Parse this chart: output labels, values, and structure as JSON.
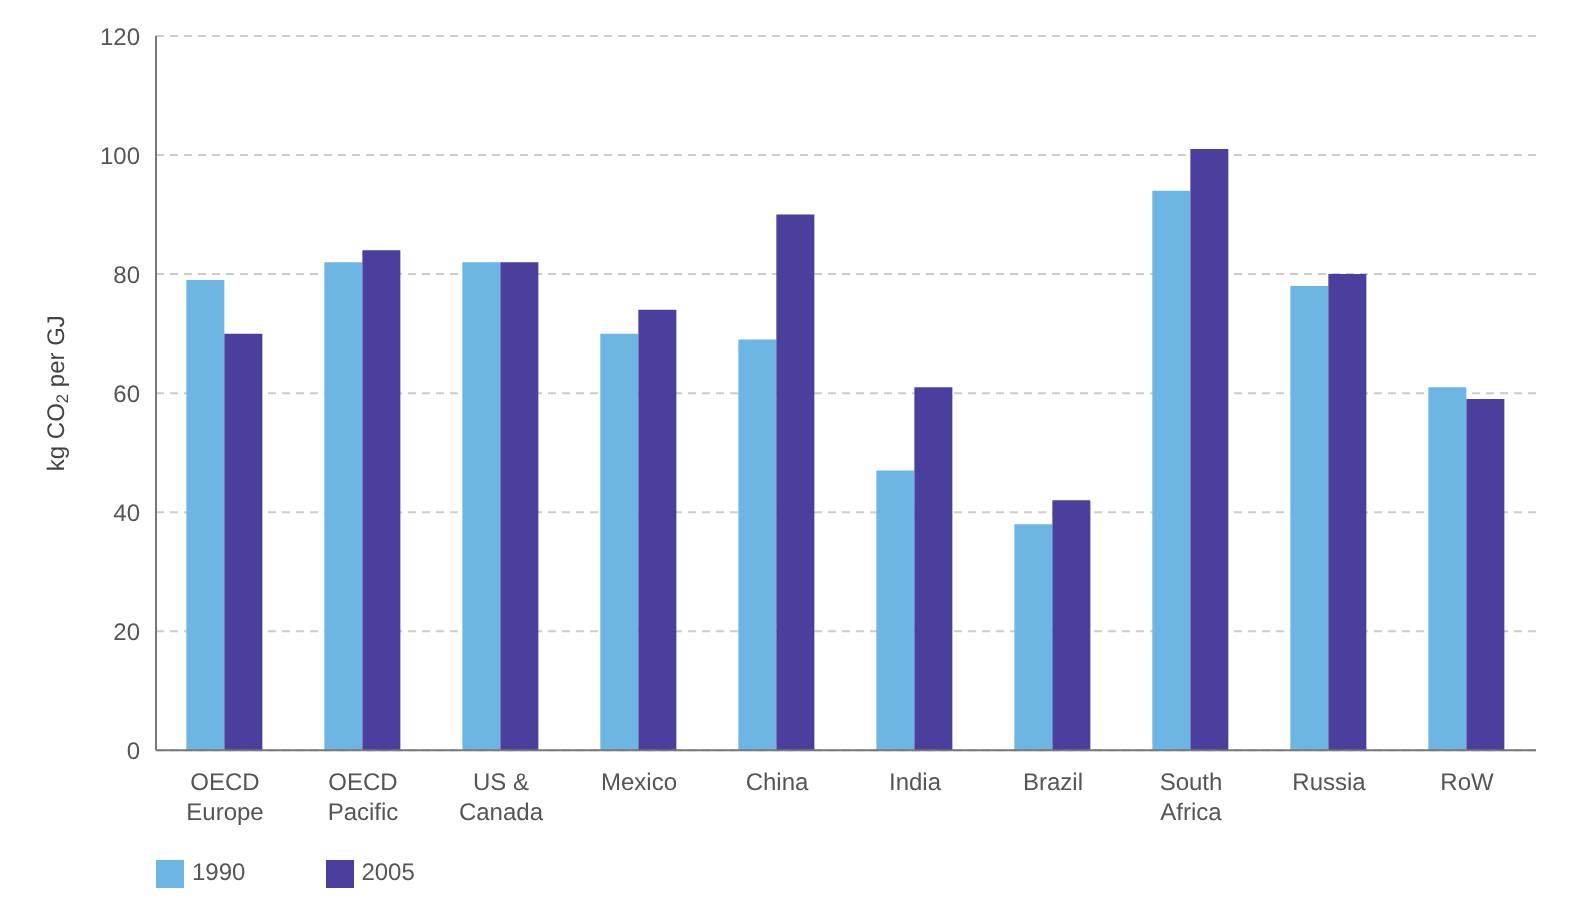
{
  "chart_data": {
    "type": "bar",
    "ylabel": "kg CO$_{2}$ per GJ",
    "categories": [
      "OECD Europe",
      "OECD Pacific",
      "US & Canada",
      "Mexico",
      "China",
      "India",
      "Brazil",
      "South Africa",
      "Russia",
      "RoW"
    ],
    "series": [
      {
        "name": "1990",
        "color": "#6db6e4",
        "values": [
          79,
          82,
          82,
          70,
          69,
          47,
          38,
          94,
          78,
          61
        ]
      },
      {
        "name": "2005",
        "color": "#4a3f9c",
        "values": [
          70,
          84,
          82,
          74,
          90,
          61,
          42,
          101,
          80,
          59
        ]
      }
    ],
    "ylim": [
      0,
      120
    ],
    "yticks": [
      0,
      20,
      40,
      60,
      80,
      100,
      120
    ],
    "grid": "y",
    "legend": "bottom left"
  }
}
